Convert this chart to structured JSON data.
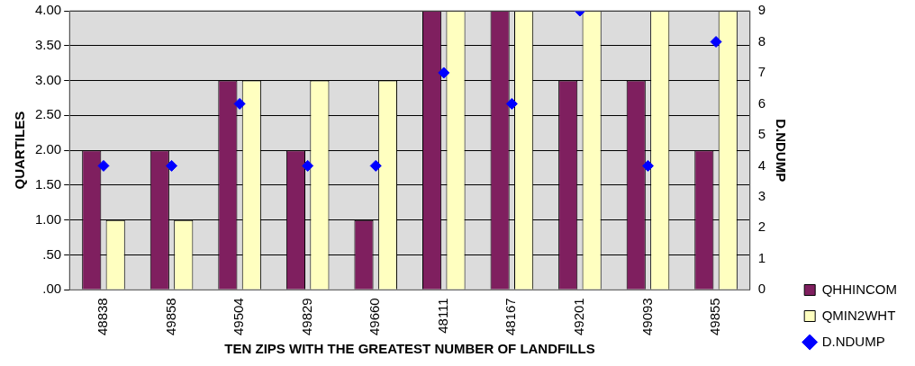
{
  "chart_data": {
    "type": "bar",
    "xlabel": "TEN ZIPS WITH THE GREATEST NUMBER OF LANDFILLS",
    "ylabel": "QUARTILES",
    "y2label": "D.NDUMP",
    "categories": [
      "48838",
      "49858",
      "49504",
      "49829",
      "49660",
      "48111",
      "48167",
      "49201",
      "49093",
      "49855"
    ],
    "series": [
      {
        "name": "QHHINCOM",
        "color": "#7f1f5f",
        "values": [
          2,
          2,
          3,
          2,
          1,
          4,
          4,
          3,
          3,
          2
        ]
      },
      {
        "name": "QMIN2WHT",
        "color": "#ffffc0",
        "values": [
          1,
          1,
          3,
          3,
          3,
          4,
          4,
          4,
          4,
          4
        ]
      },
      {
        "name": "D.NDUMP",
        "type": "scatter",
        "axis": "y2",
        "color": "#0000ff",
        "values": [
          4,
          4,
          6,
          4,
          4,
          7,
          6,
          9,
          4,
          8
        ]
      }
    ],
    "ylim": [
      0,
      4
    ],
    "yticks": [
      {
        "value": 0,
        "label": ".00"
      },
      {
        "value": 0.5,
        "label": ".50"
      },
      {
        "value": 1,
        "label": "1.00"
      },
      {
        "value": 1.5,
        "label": "1.50"
      },
      {
        "value": 2,
        "label": "2.00"
      },
      {
        "value": 2.5,
        "label": "2.50"
      },
      {
        "value": 3,
        "label": "3.00"
      },
      {
        "value": 3.5,
        "label": "3.50"
      },
      {
        "value": 4,
        "label": "4.00"
      }
    ],
    "y2lim": [
      0,
      9
    ],
    "y2ticks": [
      0,
      1,
      2,
      3,
      4,
      5,
      6,
      7,
      8,
      9
    ],
    "grid": "y",
    "legend": "bottom right",
    "marker": "diamond"
  }
}
